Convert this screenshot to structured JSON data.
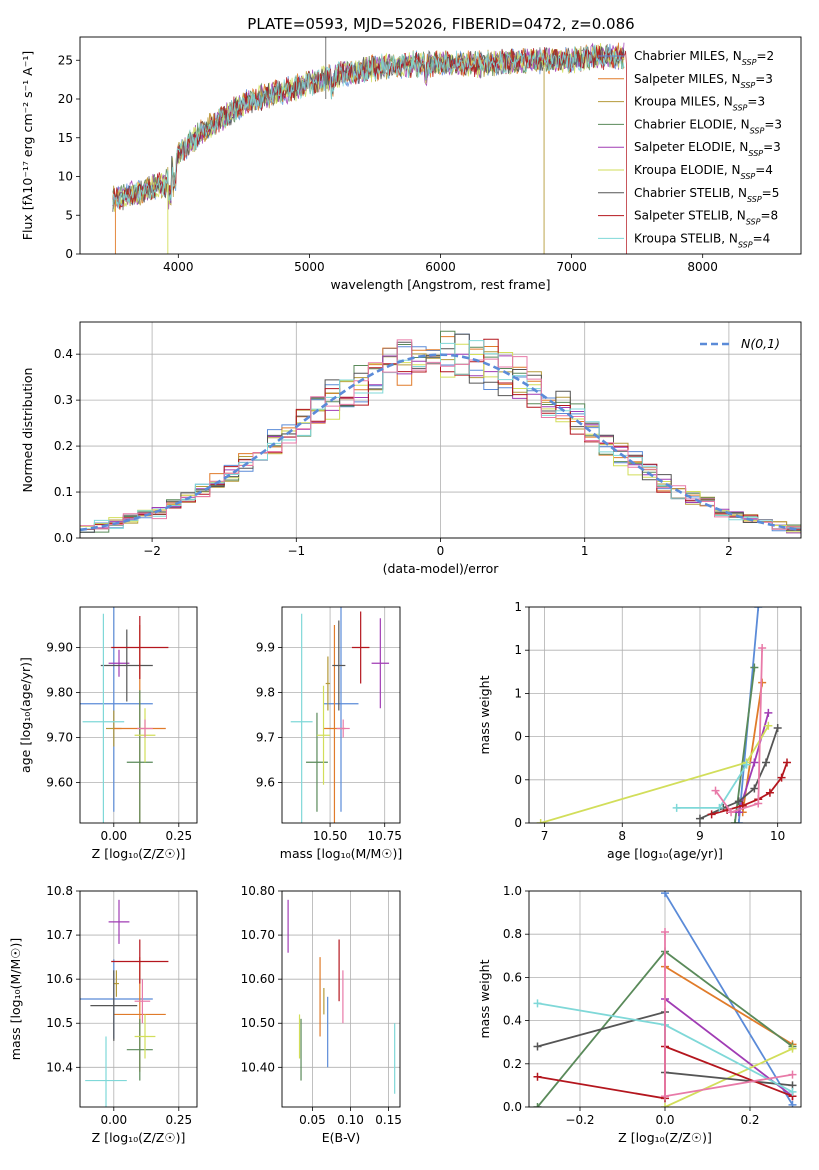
{
  "figure_title": "PLATE=0593, MJD=52026, FIBERID=0472, z=0.086",
  "colors": {
    "Chabrier MILES": "#5b8bd8",
    "Salpeter MILES": "#e07b2a",
    "Kroupa MILES": "#b59a3a",
    "Chabrier ELODIE": "#5a8a5a",
    "Salpeter ELODIE": "#a03cb4",
    "Kroupa ELODIE": "#d2de5a",
    "Chabrier STELIB": "#555555",
    "Salpeter STELIB": "#b4161e",
    "Kroupa STELIB": "#7fd8d8",
    "gauss": "#5b8bd8",
    "pink": "#e87aa8"
  },
  "chart_data": [
    {
      "type": "line",
      "title": "PLATE=0593, MJD=52026, FIBERID=0472, z=0.086",
      "xlabel": "wavelength [Angstrom, rest frame]",
      "ylabel": "Flux [fλ10⁻¹⁷ erg cm⁻² s⁻¹ A⁻¹]",
      "xlim": [
        3250,
        8750
      ],
      "ylim": [
        0,
        28
      ],
      "xticks": [
        4000,
        5000,
        6000,
        7000,
        8000
      ],
      "yticks": [
        0,
        5,
        10,
        15,
        20,
        25
      ],
      "grid": false,
      "legend_position": "right",
      "series": [
        {
          "name": "Chabrier MILES",
          "nssp": "2"
        },
        {
          "name": "Salpeter MILES",
          "nssp": "3"
        },
        {
          "name": "Kroupa MILES",
          "nssp": "3"
        },
        {
          "name": "Chabrier ELODIE",
          "nssp": "3"
        },
        {
          "name": "Salpeter ELODIE",
          "nssp": "3"
        },
        {
          "name": "Kroupa ELODIE",
          "nssp": "4"
        },
        {
          "name": "Chabrier STELIB",
          "nssp": "5"
        },
        {
          "name": "Salpeter STELIB",
          "nssp": "8"
        },
        {
          "name": "Kroupa STELIB",
          "nssp": "4"
        }
      ],
      "continuum": {
        "wavelength": [
          3500,
          3700,
          3900,
          4000,
          4200,
          4500,
          4800,
          5000,
          5200,
          5500,
          5800,
          6000,
          6300,
          6600,
          7000,
          7200,
          7400
        ],
        "flux": [
          7,
          8,
          9,
          13,
          16,
          19.5,
          21,
          22,
          23,
          24,
          24.5,
          24.5,
          24.5,
          25,
          25,
          25.5,
          25.5
        ]
      }
    },
    {
      "type": "area",
      "xlabel": "(data-model)/error",
      "ylabel": "Normed distribution",
      "xlim": [
        -2.5,
        2.5
      ],
      "ylim": [
        0,
        0.47
      ],
      "xticks": [
        -2,
        -1,
        0,
        1,
        2
      ],
      "yticks": [
        0.0,
        0.1,
        0.2,
        0.3,
        0.4
      ],
      "grid": true,
      "legend_position": "top-right",
      "legend": "N(0,1)",
      "bin_width": 0.1
    },
    {
      "type": "scatter",
      "xlabel": "Z [log₁₀(Z/Z☉)]",
      "ylabel": "age  [log₁₀(age/yr)]",
      "xlim": [
        -0.13,
        0.32
      ],
      "ylim": [
        9.51,
        9.99
      ],
      "xticks": [
        0.0,
        0.25
      ],
      "yticks": [
        9.6,
        9.7,
        9.8,
        9.9
      ],
      "grid": true,
      "points": [
        {
          "series": "Chabrier MILES",
          "x": 0.0,
          "y": 9.775,
          "xerr": 0.15,
          "yerr": 0.24
        },
        {
          "series": "Kroupa MILES",
          "x": 0.0,
          "y": 9.72,
          "xerr": 0.03,
          "yerr": 0.04
        },
        {
          "series": "Salpeter MILES",
          "x": 0.1,
          "y": 9.72,
          "xerr": 0.1,
          "yerr": 0.23
        },
        {
          "series": "Chabrier ELODIE",
          "x": 0.1,
          "y": 9.645,
          "xerr": 0.05,
          "yerr": 0.16
        },
        {
          "series": "Salpeter ELODIE",
          "x": 0.02,
          "y": 9.865,
          "xerr": 0.04,
          "yerr": 0.03
        },
        {
          "series": "Kroupa ELODIE",
          "x": 0.12,
          "y": 9.705,
          "xerr": 0.04,
          "yerr": 0.06
        },
        {
          "series": "Chabrier STELIB",
          "x": 0.05,
          "y": 9.86,
          "xerr": 0.1,
          "yerr": 0.08
        },
        {
          "series": "Salpeter STELIB",
          "x": 0.1,
          "y": 9.9,
          "xerr": 0.11,
          "yerr": 0.07
        },
        {
          "series": "Kroupa STELIB",
          "x": -0.04,
          "y": 9.735,
          "xerr": 0.08,
          "yerr": 0.24
        },
        {
          "series": "pink",
          "x": 0.12,
          "y": 9.72,
          "xerr": 0.03,
          "yerr": 0.02
        }
      ]
    },
    {
      "type": "scatter",
      "xlabel": "mass [log₁₀(M/M☉)]",
      "ylabel": "",
      "xlim": [
        10.28,
        10.82
      ],
      "ylim": [
        9.51,
        9.99
      ],
      "xticks": [
        10.5,
        10.75
      ],
      "yticks": [
        9.6,
        9.7,
        9.8,
        9.9
      ],
      "grid": true,
      "points": [
        {
          "series": "Chabrier MILES",
          "x": 10.55,
          "y": 9.775,
          "xerr": 0.08,
          "yerr": 0.24
        },
        {
          "series": "Salpeter MILES",
          "x": 10.52,
          "y": 9.72,
          "xerr": 0.05,
          "yerr": 0.23
        },
        {
          "series": "Kroupa MILES",
          "x": 10.49,
          "y": 9.82,
          "xerr": 0.01,
          "yerr": 0.06
        },
        {
          "series": "Chabrier ELODIE",
          "x": 10.44,
          "y": 9.645,
          "xerr": 0.05,
          "yerr": 0.11
        },
        {
          "series": "Salpeter ELODIE",
          "x": 10.73,
          "y": 9.865,
          "xerr": 0.04,
          "yerr": 0.1
        },
        {
          "series": "Kroupa ELODIE",
          "x": 10.47,
          "y": 9.705,
          "xerr": 0.03,
          "yerr": 0.11
        },
        {
          "series": "Chabrier STELIB",
          "x": 10.54,
          "y": 9.86,
          "xerr": 0.03,
          "yerr": 0.1
        },
        {
          "series": "Salpeter STELIB",
          "x": 10.64,
          "y": 9.9,
          "xerr": 0.04,
          "yerr": 0.08
        },
        {
          "series": "Kroupa STELIB",
          "x": 10.37,
          "y": 9.735,
          "xerr": 0.05,
          "yerr": 0.24
        },
        {
          "series": "pink",
          "x": 10.56,
          "y": 9.72,
          "xerr": 0.03,
          "yerr": 0.02
        }
      ]
    },
    {
      "type": "line",
      "xlabel": "age  [log₁₀(age/yr)]",
      "ylabel": "mass weight",
      "xlim": [
        6.8,
        10.3
      ],
      "ylim": [
        0,
        1
      ],
      "xticks": [
        7,
        8,
        9,
        10
      ],
      "yticks": [
        0.0,
        0.2,
        0.4,
        0.6,
        0.8,
        1.0
      ],
      "grid": true,
      "series": [
        {
          "name": "Chabrier MILES",
          "x": [
            9.5,
            9.75
          ],
          "y": [
            0.0,
            1.0
          ]
        },
        {
          "name": "Salpeter MILES",
          "x": [
            9.55,
            9.8
          ],
          "y": [
            0.05,
            0.65
          ]
        },
        {
          "name": "Chabrier ELODIE",
          "x": [
            9.45,
            9.7
          ],
          "y": [
            0.0,
            0.72
          ]
        },
        {
          "name": "Salpeter ELODIE",
          "x": [
            9.5,
            9.7,
            9.88
          ],
          "y": [
            0.05,
            0.28,
            0.51
          ]
        },
        {
          "name": "Kroupa ELODIE",
          "x": [
            6.95,
            9.6,
            9.88
          ],
          "y": [
            0.0,
            0.28,
            0.45
          ]
        },
        {
          "name": "Chabrier STELIB",
          "x": [
            9.0,
            9.3,
            9.5,
            9.7,
            9.85,
            10.0
          ],
          "y": [
            0.02,
            0.07,
            0.1,
            0.16,
            0.28,
            0.44
          ]
        },
        {
          "name": "Salpeter STELIB",
          "x": [
            9.15,
            9.35,
            9.55,
            9.75,
            9.9,
            10.05,
            10.12
          ],
          "y": [
            0.04,
            0.06,
            0.08,
            0.11,
            0.14,
            0.21,
            0.28
          ]
        },
        {
          "name": "Kroupa STELIB",
          "x": [
            8.7,
            9.25,
            9.6
          ],
          "y": [
            0.07,
            0.07,
            0.27
          ]
        },
        {
          "name": "pink",
          "x": [
            9.2,
            9.4,
            9.75,
            9.8
          ],
          "y": [
            0.15,
            0.05,
            0.09,
            0.81
          ]
        }
      ]
    },
    {
      "type": "scatter",
      "xlabel": "Z [log₁₀(Z/Z☉)]",
      "ylabel": "mass [log₁₀(M/M☉)]",
      "xlim": [
        -0.13,
        0.32
      ],
      "ylim": [
        10.31,
        10.8
      ],
      "xticks": [
        0.0,
        0.25
      ],
      "yticks": [
        10.4,
        10.5,
        10.6,
        10.7,
        10.8
      ],
      "grid": true,
      "points": [
        {
          "series": "Chabrier MILES",
          "x": 0.0,
          "y": 10.555,
          "xerr": 0.15,
          "yerr": 0.09
        },
        {
          "series": "Salpeter MILES",
          "x": 0.1,
          "y": 10.52,
          "xerr": 0.1,
          "yerr": 0.13
        },
        {
          "series": "Kroupa MILES",
          "x": 0.01,
          "y": 10.59,
          "xerr": 0.01,
          "yerr": 0.03
        },
        {
          "series": "Chabrier ELODIE",
          "x": 0.1,
          "y": 10.44,
          "xerr": 0.05,
          "yerr": 0.07
        },
        {
          "series": "Salpeter ELODIE",
          "x": 0.02,
          "y": 10.73,
          "xerr": 0.04,
          "yerr": 0.05
        },
        {
          "series": "Kroupa ELODIE",
          "x": 0.12,
          "y": 10.47,
          "xerr": 0.04,
          "yerr": 0.05
        },
        {
          "series": "Chabrier STELIB",
          "x": 0.0,
          "y": 10.54,
          "xerr": 0.09,
          "yerr": 0.08
        },
        {
          "series": "Salpeter STELIB",
          "x": 0.1,
          "y": 10.64,
          "xerr": 0.11,
          "yerr": 0.05
        },
        {
          "series": "Kroupa STELIB",
          "x": -0.03,
          "y": 10.37,
          "xerr": 0.08,
          "yerr": 0.1
        },
        {
          "series": "pink",
          "x": 0.11,
          "y": 10.55,
          "xerr": 0.03,
          "yerr": 0.05
        }
      ]
    },
    {
      "type": "scatter",
      "xlabel": "E(B-V)",
      "ylabel": "",
      "xlim": [
        0.01,
        0.165
      ],
      "ylim": [
        10.31,
        10.8
      ],
      "xticks": [
        0.05,
        0.1,
        0.15
      ],
      "yticks": [
        10.4,
        10.5,
        10.6,
        10.7,
        10.8
      ],
      "grid": true,
      "points": [
        {
          "series": "Chabrier MILES",
          "x": 0.07,
          "y": 10.48,
          "yerr": 0.08
        },
        {
          "series": "Salpeter MILES",
          "x": 0.06,
          "y": 10.56,
          "yerr": 0.09
        },
        {
          "series": "Kroupa MILES",
          "x": 0.065,
          "y": 10.55,
          "yerr": 0.03
        },
        {
          "series": "Chabrier ELODIE",
          "x": 0.035,
          "y": 10.44,
          "yerr": 0.07
        },
        {
          "series": "Salpeter ELODIE",
          "x": 0.018,
          "y": 10.72,
          "yerr": 0.06
        },
        {
          "series": "Kroupa ELODIE",
          "x": 0.033,
          "y": 10.47,
          "yerr": 0.05
        },
        {
          "series": "Salpeter STELIB",
          "x": 0.085,
          "y": 10.62,
          "yerr": 0.07
        },
        {
          "series": "Kroupa STELIB",
          "x": 0.158,
          "y": 10.42,
          "yerr": 0.08
        },
        {
          "series": "pink",
          "x": 0.09,
          "y": 10.56,
          "yerr": 0.06
        }
      ]
    },
    {
      "type": "line",
      "xlabel": "Z [log₁₀(Z/Z☉)]",
      "ylabel": "mass weight",
      "xlim": [
        -0.32,
        0.32
      ],
      "ylim": [
        0,
        1
      ],
      "xticks": [
        -0.2,
        0.0,
        0.2
      ],
      "yticks": [
        0.0,
        0.2,
        0.4,
        0.6,
        0.8,
        1.0
      ],
      "grid": true,
      "series": [
        {
          "name": "Chabrier MILES",
          "x": [
            0.0,
            0.3
          ],
          "y": [
            0.99,
            0.01
          ]
        },
        {
          "name": "Salpeter MILES",
          "x": [
            0.0,
            0.3
          ],
          "y": [
            0.65,
            0.29
          ]
        },
        {
          "name": "Chabrier ELODIE",
          "x": [
            -0.3,
            0.0,
            0.3
          ],
          "y": [
            0.0,
            0.72,
            0.28
          ]
        },
        {
          "name": "Salpeter ELODIE",
          "x": [
            0.0,
            0.3
          ],
          "y": [
            0.5,
            0.05
          ]
        },
        {
          "name": "Kroupa ELODIE",
          "x": [
            0.0,
            0.3
          ],
          "y": [
            0.0,
            0.27
          ]
        },
        {
          "name": "Chabrier STELIB",
          "x": [
            -0.3,
            0.0,
            0.0,
            0.3
          ],
          "y": [
            0.28,
            0.44,
            0.16,
            0.1
          ]
        },
        {
          "name": "Salpeter STELIB",
          "x": [
            -0.3,
            0.0,
            0.0,
            0.3
          ],
          "y": [
            0.14,
            0.04,
            0.28,
            0.05
          ]
        },
        {
          "name": "Kroupa STELIB",
          "x": [
            -0.3,
            0.0,
            0.3
          ],
          "y": [
            0.48,
            0.38,
            0.07
          ]
        },
        {
          "name": "pink",
          "x": [
            0.0,
            0.0,
            0.3
          ],
          "y": [
            0.81,
            0.05,
            0.15
          ]
        }
      ]
    }
  ]
}
